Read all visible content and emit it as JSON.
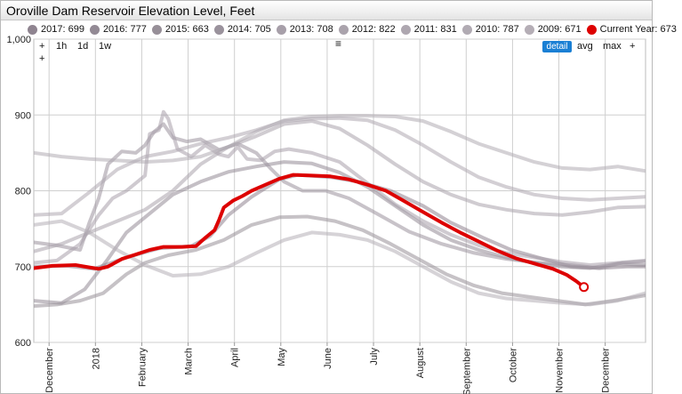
{
  "window": {
    "title": "Oroville Dam Reservoir Elevation Level, Feet"
  },
  "legend": [
    {
      "label": "2017: 699",
      "color": "#8f8490"
    },
    {
      "label": "2016: 777",
      "color": "#938a95"
    },
    {
      "label": "2015: 663",
      "color": "#978f98"
    },
    {
      "label": "2014: 705",
      "color": "#9a929c"
    },
    {
      "label": "2013: 708",
      "color": "#a79fa9"
    },
    {
      "label": "2012: 822",
      "color": "#aaa3ac"
    },
    {
      "label": "2011: 831",
      "color": "#aea7b0"
    },
    {
      "label": "2010: 787",
      "color": "#b1abb3"
    },
    {
      "label": "2009: 671",
      "color": "#b5aeb6"
    },
    {
      "label": "Current Year: 673",
      "color": "#dd0000"
    }
  ],
  "controls": {
    "zoom_in": "+",
    "zoom_out": "+",
    "range_1h": "1h",
    "range_1d": "1d",
    "range_1w": "1w",
    "menu_icon": "≡",
    "detail": "detail",
    "avg": "avg",
    "max": "max",
    "plus": "+"
  },
  "chart_data": {
    "type": "line",
    "title": "Oroville Dam Reservoir Elevation Level, Feet",
    "ylim": [
      600,
      1000
    ],
    "yticks": [
      "1,000",
      "900",
      "800",
      "700",
      "600"
    ],
    "ytick_values": [
      1000,
      900,
      800,
      700,
      600
    ],
    "xticks": [
      "December",
      "2018",
      "February",
      "March",
      "April",
      "May",
      "June",
      "July",
      "August",
      "September",
      "October",
      "November",
      "December"
    ],
    "xtick_values": [
      -0.87,
      0.13,
      1.13,
      2.13,
      3.13,
      4.13,
      5.13,
      6.13,
      7.13,
      8.13,
      9.13,
      10.13,
      11.13
    ],
    "x_range": [
      -1.2,
      12.0
    ],
    "grid": true,
    "legend_placement": "top",
    "series": [
      {
        "name": "2017",
        "color": "#8f8490",
        "points": [
          [
            -1.2,
            700
          ],
          [
            -0.5,
            701
          ],
          [
            0.1,
            697
          ],
          [
            0.8,
            712
          ],
          [
            1.5,
            724
          ],
          [
            2.2,
            727
          ],
          [
            2.6,
            740
          ],
          [
            3.0,
            768
          ],
          [
            3.5,
            792
          ],
          [
            4.1,
            815
          ],
          [
            4.5,
            821
          ],
          [
            5.2,
            818
          ],
          [
            5.8,
            812
          ],
          [
            6.5,
            800
          ],
          [
            7.2,
            780
          ],
          [
            7.8,
            758
          ],
          [
            8.5,
            738
          ],
          [
            9.1,
            722
          ],
          [
            9.8,
            710
          ],
          [
            10.4,
            700
          ],
          [
            11.0,
            698
          ],
          [
            11.6,
            700
          ],
          [
            12.0,
            700
          ]
        ]
      },
      {
        "name": "2016",
        "color": "#938a95",
        "points": [
          [
            -1.2,
            655
          ],
          [
            -0.6,
            652
          ],
          [
            -0.1,
            670
          ],
          [
            0.4,
            710
          ],
          [
            0.8,
            745
          ],
          [
            1.3,
            770
          ],
          [
            1.8,
            795
          ],
          [
            2.4,
            812
          ],
          [
            3.0,
            825
          ],
          [
            3.6,
            832
          ],
          [
            4.2,
            838
          ],
          [
            4.8,
            836
          ],
          [
            5.4,
            824
          ],
          [
            6.0,
            805
          ],
          [
            6.6,
            780
          ],
          [
            7.2,
            755
          ],
          [
            7.8,
            735
          ],
          [
            8.4,
            722
          ],
          [
            9.0,
            712
          ],
          [
            9.6,
            705
          ],
          [
            10.2,
            700
          ],
          [
            10.8,
            698
          ],
          [
            11.4,
            704
          ],
          [
            12.0,
            702
          ]
        ]
      },
      {
        "name": "2015",
        "color": "#978f98",
        "points": [
          [
            -1.2,
            648
          ],
          [
            -0.7,
            650
          ],
          [
            -0.2,
            655
          ],
          [
            0.3,
            665
          ],
          [
            0.8,
            690
          ],
          [
            1.2,
            705
          ],
          [
            1.7,
            715
          ],
          [
            2.3,
            722
          ],
          [
            2.9,
            735
          ],
          [
            3.5,
            755
          ],
          [
            4.1,
            765
          ],
          [
            4.7,
            766
          ],
          [
            5.3,
            760
          ],
          [
            5.9,
            748
          ],
          [
            6.5,
            730
          ],
          [
            7.1,
            710
          ],
          [
            7.7,
            690
          ],
          [
            8.3,
            675
          ],
          [
            8.9,
            665
          ],
          [
            9.5,
            660
          ],
          [
            10.1,
            655
          ],
          [
            10.7,
            650
          ],
          [
            11.3,
            655
          ],
          [
            12.0,
            662
          ]
        ]
      },
      {
        "name": "2014",
        "color": "#9a929c",
        "points": [
          [
            -1.2,
            732
          ],
          [
            -0.7,
            728
          ],
          [
            -0.2,
            722
          ],
          [
            0.0,
            758
          ],
          [
            0.2,
            790
          ],
          [
            0.4,
            835
          ],
          [
            0.7,
            852
          ],
          [
            1.0,
            850
          ],
          [
            1.2,
            860
          ],
          [
            1.4,
            878
          ],
          [
            1.6,
            888
          ],
          [
            1.8,
            870
          ],
          [
            2.1,
            865
          ],
          [
            2.4,
            868
          ],
          [
            2.8,
            854
          ],
          [
            3.2,
            862
          ],
          [
            3.6,
            850
          ],
          [
            3.9,
            830
          ],
          [
            4.2,
            812
          ],
          [
            4.6,
            800
          ],
          [
            5.1,
            800
          ],
          [
            5.6,
            790
          ],
          [
            6.2,
            770
          ],
          [
            6.9,
            746
          ],
          [
            7.6,
            730
          ],
          [
            8.3,
            718
          ],
          [
            9.0,
            710
          ],
          [
            9.7,
            705
          ],
          [
            10.4,
            702
          ],
          [
            11.0,
            698
          ],
          [
            11.5,
            705
          ],
          [
            12.0,
            707
          ]
        ]
      },
      {
        "name": "2013",
        "color": "#a79fa9",
        "points": [
          [
            -1.2,
            705
          ],
          [
            -0.7,
            708
          ],
          [
            -0.2,
            730
          ],
          [
            0.2,
            768
          ],
          [
            0.5,
            790
          ],
          [
            0.8,
            800
          ],
          [
            1.2,
            820
          ],
          [
            1.3,
            875
          ],
          [
            1.5,
            880
          ],
          [
            1.6,
            904
          ],
          [
            1.7,
            895
          ],
          [
            1.9,
            855
          ],
          [
            2.2,
            845
          ],
          [
            2.5,
            860
          ],
          [
            2.8,
            848
          ],
          [
            3.0,
            845
          ],
          [
            3.2,
            858
          ],
          [
            3.4,
            842
          ],
          [
            3.7,
            840
          ],
          [
            4.0,
            852
          ],
          [
            4.3,
            855
          ],
          [
            4.8,
            850
          ],
          [
            5.4,
            838
          ],
          [
            6.0,
            810
          ],
          [
            6.6,
            782
          ],
          [
            7.2,
            760
          ],
          [
            7.8,
            742
          ],
          [
            8.4,
            728
          ],
          [
            9.0,
            718
          ],
          [
            9.6,
            712
          ],
          [
            10.2,
            706
          ],
          [
            10.8,
            702
          ],
          [
            11.4,
            705
          ],
          [
            12.0,
            708
          ]
        ]
      },
      {
        "name": "2012",
        "color": "#aaa3ac",
        "points": [
          [
            -1.2,
            720
          ],
          [
            -0.6,
            730
          ],
          [
            0.0,
            745
          ],
          [
            0.6,
            760
          ],
          [
            1.2,
            775
          ],
          [
            1.8,
            800
          ],
          [
            2.4,
            835
          ],
          [
            3.0,
            858
          ],
          [
            3.6,
            872
          ],
          [
            4.2,
            888
          ],
          [
            4.8,
            892
          ],
          [
            5.4,
            882
          ],
          [
            6.0,
            860
          ],
          [
            6.6,
            835
          ],
          [
            7.2,
            812
          ],
          [
            7.8,
            795
          ],
          [
            8.4,
            782
          ],
          [
            9.0,
            775
          ],
          [
            9.6,
            770
          ],
          [
            10.2,
            768
          ],
          [
            10.8,
            772
          ],
          [
            11.4,
            778
          ],
          [
            12.0,
            779
          ]
        ]
      },
      {
        "name": "2011",
        "color": "#aea7b0",
        "points": [
          [
            -1.2,
            768
          ],
          [
            -0.6,
            770
          ],
          [
            0.0,
            798
          ],
          [
            0.6,
            828
          ],
          [
            1.2,
            845
          ],
          [
            1.8,
            852
          ],
          [
            2.4,
            862
          ],
          [
            3.0,
            870
          ],
          [
            3.6,
            880
          ],
          [
            4.2,
            892
          ],
          [
            4.8,
            895
          ],
          [
            5.4,
            896
          ],
          [
            6.0,
            893
          ],
          [
            6.6,
            880
          ],
          [
            7.2,
            860
          ],
          [
            7.8,
            838
          ],
          [
            8.4,
            818
          ],
          [
            9.0,
            805
          ],
          [
            9.6,
            795
          ],
          [
            10.2,
            790
          ],
          [
            10.8,
            788
          ],
          [
            11.4,
            790
          ],
          [
            12.0,
            792
          ]
        ]
      },
      {
        "name": "2010",
        "color": "#b1abb3",
        "points": [
          [
            -1.2,
            850
          ],
          [
            -0.6,
            845
          ],
          [
            0.0,
            842
          ],
          [
            0.6,
            840
          ],
          [
            1.2,
            838
          ],
          [
            1.8,
            840
          ],
          [
            2.4,
            845
          ],
          [
            3.0,
            858
          ],
          [
            3.6,
            878
          ],
          [
            4.2,
            893
          ],
          [
            4.8,
            898
          ],
          [
            5.4,
            899
          ],
          [
            6.0,
            899
          ],
          [
            6.6,
            898
          ],
          [
            7.2,
            892
          ],
          [
            7.8,
            878
          ],
          [
            8.4,
            862
          ],
          [
            9.0,
            850
          ],
          [
            9.6,
            838
          ],
          [
            10.2,
            830
          ],
          [
            10.8,
            828
          ],
          [
            11.4,
            832
          ],
          [
            12.0,
            826
          ]
        ]
      },
      {
        "name": "2009",
        "color": "#b5aeb6",
        "points": [
          [
            -1.2,
            755
          ],
          [
            -0.6,
            760
          ],
          [
            0.0,
            745
          ],
          [
            0.6,
            722
          ],
          [
            1.2,
            702
          ],
          [
            1.8,
            688
          ],
          [
            2.4,
            690
          ],
          [
            3.0,
            700
          ],
          [
            3.6,
            718
          ],
          [
            4.2,
            735
          ],
          [
            4.8,
            745
          ],
          [
            5.4,
            742
          ],
          [
            6.0,
            735
          ],
          [
            6.6,
            720
          ],
          [
            7.2,
            700
          ],
          [
            7.8,
            680
          ],
          [
            8.4,
            665
          ],
          [
            9.0,
            658
          ],
          [
            9.6,
            655
          ],
          [
            10.2,
            652
          ],
          [
            10.8,
            650
          ],
          [
            11.4,
            655
          ],
          [
            12.0,
            665
          ]
        ]
      },
      {
        "name": "Current Year",
        "color": "#dd0000",
        "current": true,
        "points": [
          [
            -1.2,
            698
          ],
          [
            -0.8,
            701
          ],
          [
            -0.3,
            702
          ],
          [
            0.0,
            699
          ],
          [
            0.2,
            697
          ],
          [
            0.4,
            700
          ],
          [
            0.7,
            710
          ],
          [
            1.0,
            716
          ],
          [
            1.3,
            722
          ],
          [
            1.6,
            726
          ],
          [
            2.0,
            726
          ],
          [
            2.3,
            727
          ],
          [
            2.5,
            738
          ],
          [
            2.7,
            748
          ],
          [
            2.8,
            762
          ],
          [
            2.9,
            778
          ],
          [
            3.1,
            787
          ],
          [
            3.3,
            793
          ],
          [
            3.5,
            800
          ],
          [
            3.8,
            808
          ],
          [
            4.1,
            816
          ],
          [
            4.4,
            821
          ],
          [
            4.8,
            820
          ],
          [
            5.2,
            819
          ],
          [
            5.6,
            815
          ],
          [
            6.0,
            808
          ],
          [
            6.4,
            800
          ],
          [
            6.8,
            786
          ],
          [
            7.2,
            772
          ],
          [
            7.6,
            758
          ],
          [
            8.0,
            745
          ],
          [
            8.4,
            733
          ],
          [
            8.8,
            721
          ],
          [
            9.2,
            711
          ],
          [
            9.6,
            704
          ],
          [
            10.0,
            697
          ],
          [
            10.3,
            689
          ],
          [
            10.5,
            681
          ],
          [
            10.67,
            673
          ]
        ]
      }
    ]
  }
}
